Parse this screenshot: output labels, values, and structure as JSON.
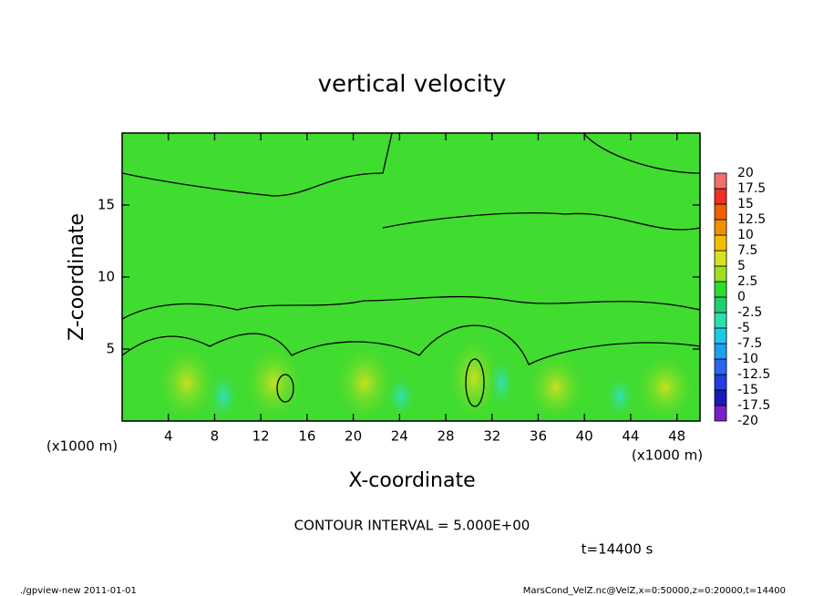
{
  "chart_data": {
    "type": "contour",
    "title": "vertical velocity",
    "xlabel": "X-coordinate",
    "ylabel": "Z-coordinate",
    "x_unit": "(x1000 m)",
    "y_unit": "(x1000 m)",
    "xlim": [
      0,
      50
    ],
    "xticks": [
      4,
      8,
      12,
      16,
      20,
      24,
      28,
      32,
      36,
      40,
      44,
      48
    ],
    "ylim": [
      0,
      20
    ],
    "yticks": [
      5,
      10,
      15
    ],
    "colorbar": {
      "levels": [
        -20,
        -17.5,
        -15,
        -12.5,
        -10,
        -7.5,
        -5,
        -2.5,
        0,
        2.5,
        5,
        7.5,
        10,
        12.5,
        15,
        17.5,
        20
      ],
      "colors": [
        "#7a1fc8",
        "#1a1ab4",
        "#1f3fe0",
        "#2a66f2",
        "#1ea0f0",
        "#20c8e8",
        "#28e0b0",
        "#20d070",
        "#30dc30",
        "#a0e020",
        "#d8e020",
        "#f0c000",
        "#f09000",
        "#f06000",
        "#f03020",
        "#f07070"
      ]
    },
    "contour_interval": "CONTOUR INTERVAL = 5.000E+00",
    "time": "t=14400 s",
    "footer_left": "./gpview-new   2011-01-01",
    "footer_right": "MarsCond_VelZ.nc@VelZ,x=0:50000,z=0:20000,t=14400"
  }
}
